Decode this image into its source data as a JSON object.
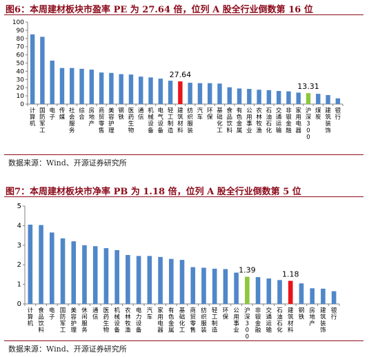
{
  "colors": {
    "bar": "#4f87c9",
    "highlight": "#e8141a",
    "index": "#8dc63f",
    "title": "#8b0a1a",
    "axis": "#808080"
  },
  "chart_data": [
    {
      "type": "bar",
      "title": "图6：本周建材板块市盈率 PE 为 27.64 倍，位列 A 股全行业倒数第 16 位",
      "source": "数据来源：Wind、开源证券研究所",
      "ylim": [
        0,
        100
      ],
      "yticks": [
        0,
        10,
        20,
        30,
        40,
        50,
        60,
        70,
        80,
        90,
        100
      ],
      "grid": false,
      "categories": [
        "计算机",
        "国防军工",
        "电子",
        "传媒",
        "社会服务",
        "综合",
        "房地产",
        "商贸零售",
        "美容护理",
        "钢铁",
        "医药生物",
        "通信",
        "机械设备",
        "电气设备",
        "轻工制造",
        "建筑材料",
        "纺织服装",
        "汽车",
        "环保",
        "基础化工",
        "食品饮料",
        "有色金属",
        "公用事业",
        "农林牧渔",
        "石油石化",
        "交通运输",
        "非银金融",
        "家用电器",
        "沪深300",
        "煤炭",
        "建筑装饰",
        "银行"
      ],
      "values": [
        85,
        82,
        53,
        44,
        44,
        43,
        42,
        38.5,
        38,
        36.5,
        36,
        33.5,
        32.5,
        31,
        28.5,
        27.64,
        26,
        25.5,
        25.5,
        25,
        20.5,
        19,
        18.5,
        17.5,
        17,
        16,
        15.5,
        14,
        13.31,
        12.5,
        11,
        7
      ],
      "highlight": {
        "建筑材料": "highlight",
        "沪深300": "index"
      },
      "data_labels": [
        {
          "category": "建筑材料",
          "text": "27.64"
        },
        {
          "category": "沪深300",
          "text": "13.31"
        }
      ]
    },
    {
      "type": "bar",
      "title": "图7：本周建材板块市净率 PB 为 1.18 倍，位列 A 股全行业倒数第 5 位",
      "source": "数据来源：Wind、开源证券研究所",
      "ylim": [
        0,
        5
      ],
      "yticks": [
        0,
        1,
        2,
        3,
        4,
        5
      ],
      "grid": false,
      "categories": [
        "计算机",
        "食品饮料",
        "电子",
        "国防军工",
        "美容护理",
        "休闲服务",
        "通信",
        "医药生物",
        "机械设备",
        "农林牧渔",
        "电力设备",
        "汽车",
        "家用电器",
        "有色金属",
        "基础化工",
        "商贸零售",
        "纺织服装",
        "轻工制造",
        "环保",
        "公用事业",
        "沪深300",
        "非银金融",
        "交通运输",
        "石油石化",
        "建筑材料",
        "钢铁",
        "房地产",
        "建筑装饰",
        "银行"
      ],
      "values": [
        4.05,
        4.03,
        3.65,
        3.35,
        3.2,
        3.0,
        2.95,
        2.85,
        2.75,
        2.5,
        2.45,
        2.45,
        2.4,
        2.3,
        2.25,
        1.88,
        1.85,
        1.8,
        1.78,
        1.6,
        1.39,
        1.37,
        1.3,
        1.22,
        1.18,
        1.05,
        0.8,
        0.78,
        0.65
      ],
      "highlight": {
        "建筑材料": "highlight",
        "沪深300": "index"
      },
      "data_labels": [
        {
          "category": "沪深300",
          "text": "1.39"
        },
        {
          "category": "建筑材料",
          "text": "1.18"
        }
      ]
    }
  ]
}
